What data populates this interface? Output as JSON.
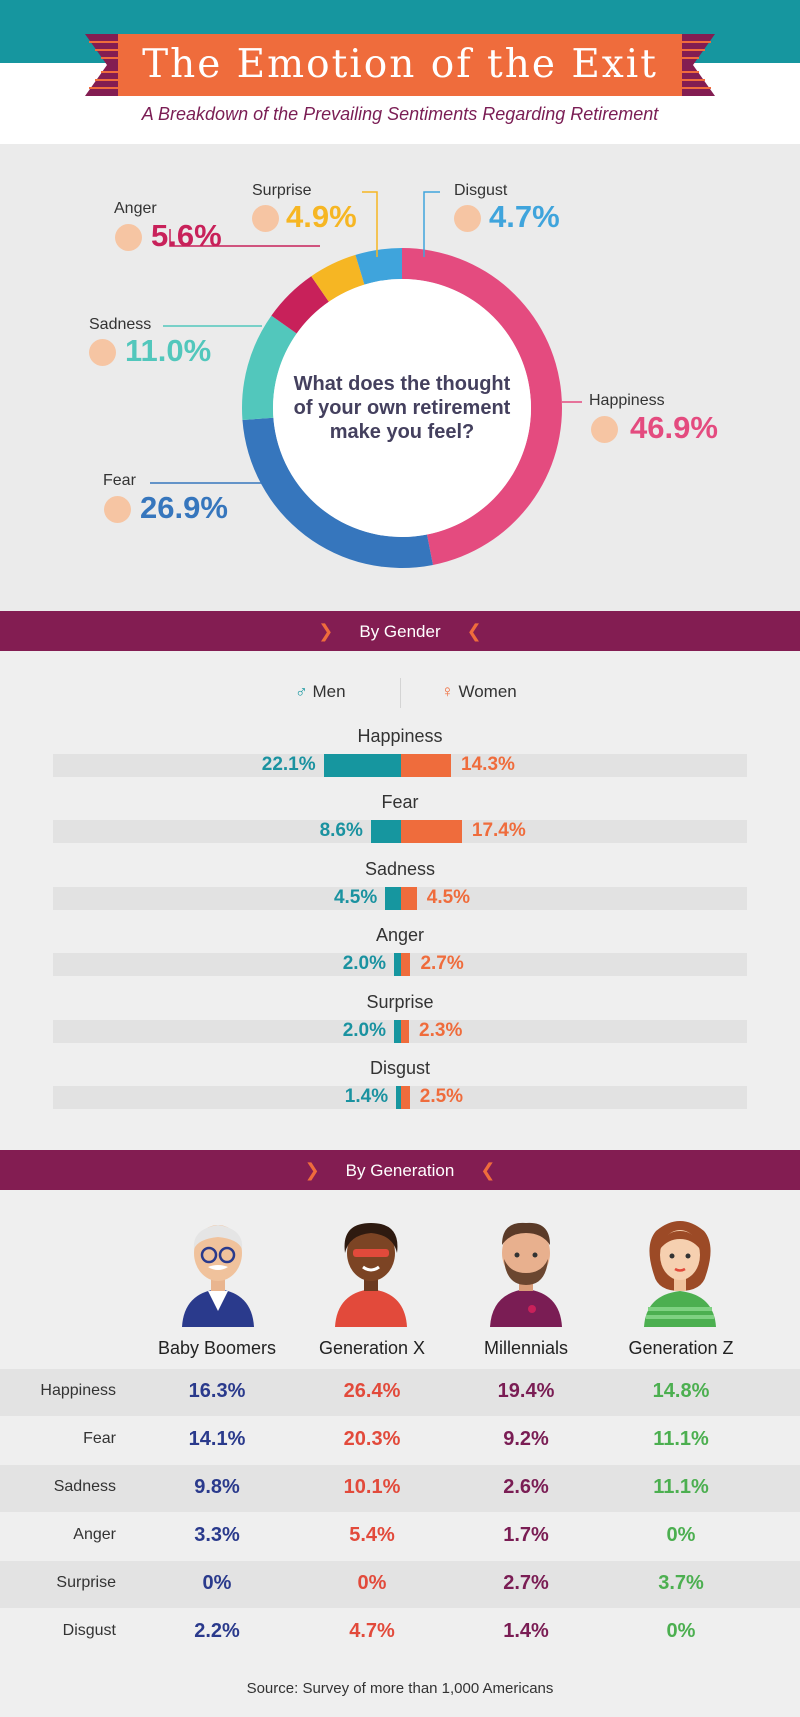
{
  "header": {
    "title": "The Emotion of the Exit",
    "subtitle": "A Breakdown of the Prevailing Sentiments Regarding Retirement"
  },
  "colors": {
    "teal": "#16969f",
    "orange": "#ef6c3c",
    "plum": "#831d52",
    "happiness": "#e44b7f",
    "fear": "#3676bd",
    "sadness": "#52c7bc",
    "anger": "#c8215a",
    "surprise": "#f6b623",
    "disgust": "#3fa4dc",
    "boomers": "#2a3a8c",
    "genx": "#e24a3b",
    "millennials": "#7a1d54",
    "genz": "#4caf50"
  },
  "chart_data": [
    {
      "type": "pie",
      "title": "What does the thought of your own retirement make you feel?",
      "categories": [
        "Happiness",
        "Fear",
        "Sadness",
        "Anger",
        "Surprise",
        "Disgust"
      ],
      "values": [
        46.9,
        26.9,
        11.0,
        5.6,
        4.9,
        4.7
      ],
      "labels": [
        "46.9%",
        "26.9%",
        "11.0%",
        "5.6%",
        "4.9%",
        "4.7%"
      ]
    },
    {
      "type": "bar",
      "title": "By Gender",
      "categories": [
        "Happiness",
        "Fear",
        "Sadness",
        "Anger",
        "Surprise",
        "Disgust"
      ],
      "series": [
        {
          "name": "Men",
          "values": [
            22.1,
            8.6,
            4.5,
            2.0,
            2.0,
            1.4
          ],
          "labels": [
            "22.1%",
            "8.6%",
            "4.5%",
            "2.0%",
            "2.0%",
            "1.4%"
          ]
        },
        {
          "name": "Women",
          "values": [
            14.3,
            17.4,
            4.5,
            2.7,
            2.3,
            2.5
          ],
          "labels": [
            "14.3%",
            "17.4%",
            "4.5%",
            "2.7%",
            "2.3%",
            "2.5%"
          ]
        }
      ],
      "legend": [
        "Men",
        "Women"
      ]
    },
    {
      "type": "table",
      "title": "By Generation",
      "columns": [
        "Baby Boomers",
        "Generation X",
        "Millennials",
        "Generation Z"
      ],
      "rows": [
        {
          "label": "Happiness",
          "cells": [
            "16.3%",
            "26.4%",
            "19.4%",
            "14.8%"
          ]
        },
        {
          "label": "Fear",
          "cells": [
            "14.1%",
            "20.3%",
            "9.2%",
            "11.1%"
          ]
        },
        {
          "label": "Sadness",
          "cells": [
            "9.8%",
            "10.1%",
            "2.6%",
            "11.1%"
          ]
        },
        {
          "label": "Anger",
          "cells": [
            "3.3%",
            "5.4%",
            "1.7%",
            "0%"
          ]
        },
        {
          "label": "Surprise",
          "cells": [
            "0%",
            "0%",
            "2.7%",
            "3.7%"
          ]
        },
        {
          "label": "Disgust",
          "cells": [
            "2.2%",
            "4.7%",
            "1.4%",
            "0%"
          ]
        }
      ]
    }
  ],
  "sections": {
    "gender_title": "By Gender",
    "generation_title": "By Generation",
    "men_label": "Men",
    "women_label": "Women",
    "center_question": "What does the thought of your own retirement make you feel?"
  },
  "source": "Source: Survey of more than 1,000 Americans"
}
